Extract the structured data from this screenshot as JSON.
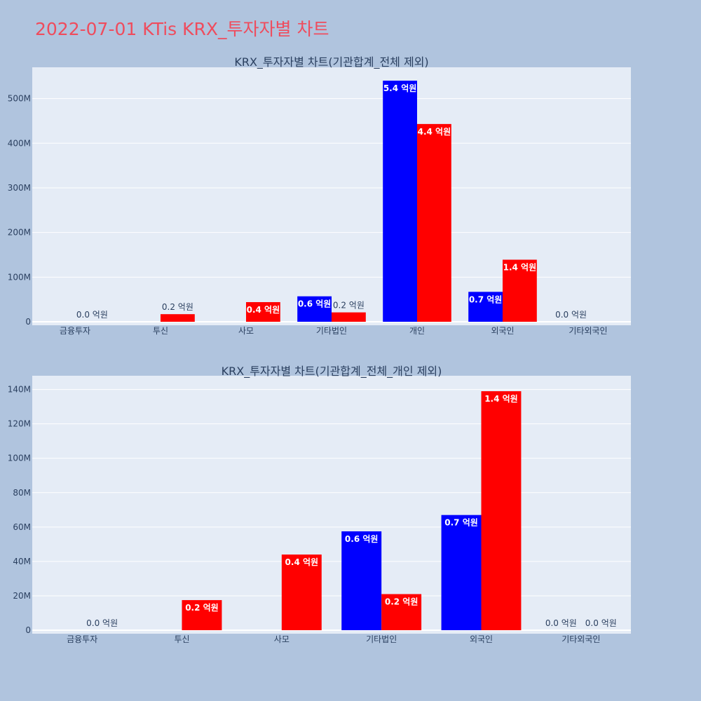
{
  "page_title": "2022-07-01 KTis KRX_투자자별 차트",
  "colors": {
    "page_bg": "#b0c4de",
    "plot_bg": "#e5ecf6",
    "grid": "#ffffff",
    "title": "#ef4c5d",
    "text": "#2a3f5f",
    "buy": "#0000ff",
    "sell": "#ff0000"
  },
  "chart_data": [
    {
      "type": "bar",
      "title": "KRX_투자자별 차트(기관합계_전체 제외)",
      "categories": [
        "금융투자",
        "투신",
        "사모",
        "기타법인",
        "개인",
        "외국인",
        "기타외국인"
      ],
      "ylim": [
        0,
        570000000
      ],
      "yticks": [
        0,
        100000000,
        200000000,
        300000000,
        400000000,
        500000000
      ],
      "ytick_labels": [
        "0",
        "100M",
        "200M",
        "300M",
        "400M",
        "500M"
      ],
      "grid": true,
      "series": [
        {
          "color": "#0000ff",
          "values": [
            0,
            0,
            0,
            57000000,
            540000000,
            67000000,
            0
          ],
          "labels": [
            "",
            "",
            "",
            "0.6 억원",
            "5.4 억원",
            "0.7 억원",
            "0.0 억원"
          ]
        },
        {
          "color": "#ff0000",
          "values": [
            0,
            17000000,
            44000000,
            21000000,
            443000000,
            139000000,
            0
          ],
          "labels": [
            "0.0 억원",
            "0.2 억원",
            "0.4 억원",
            "0.2 억원",
            "4.4 억원",
            "1.4 억원",
            ""
          ]
        }
      ]
    },
    {
      "type": "bar",
      "title": "KRX_투자자별 차트(기관합계_전체_개인 제외)",
      "categories": [
        "금융투자",
        "투신",
        "사모",
        "기타법인",
        "외국인",
        "기타외국인"
      ],
      "ylim": [
        0,
        148000000
      ],
      "yticks": [
        0,
        20000000,
        40000000,
        60000000,
        80000000,
        100000000,
        120000000,
        140000000
      ],
      "ytick_labels": [
        "0",
        "20M",
        "40M",
        "60M",
        "80M",
        "100M",
        "120M",
        "140M"
      ],
      "grid": true,
      "series": [
        {
          "color": "#0000ff",
          "values": [
            0,
            0,
            0,
            57500000,
            67000000,
            0
          ],
          "labels": [
            "",
            "",
            "",
            "0.6 억원",
            "0.7 억원",
            "0.0 억원"
          ]
        },
        {
          "color": "#ff0000",
          "values": [
            0,
            17500000,
            44000000,
            21000000,
            139000000,
            0
          ],
          "labels": [
            "0.0 억원",
            "0.2 억원",
            "0.4 억원",
            "0.2 억원",
            "1.4 억원",
            "0.0 억원"
          ]
        }
      ]
    }
  ]
}
